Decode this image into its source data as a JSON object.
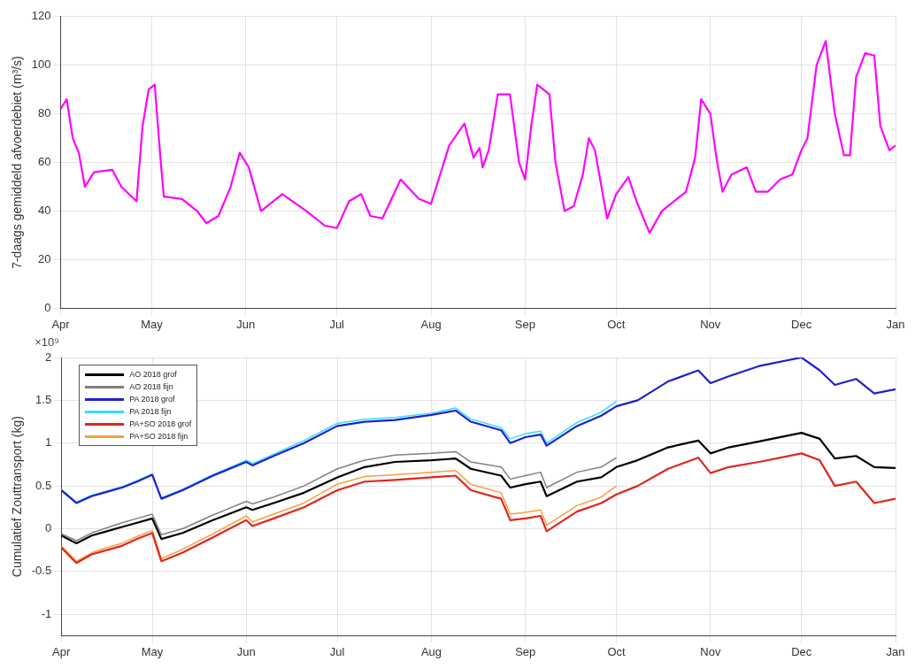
{
  "chart_data": [
    {
      "type": "line",
      "ylabel": "7-daags gemiddeld afvoerdebiet (m³/s)",
      "xlim": [
        "2018-04-01",
        "2019-01-01"
      ],
      "xticks": [
        {
          "value": "2018-04-01",
          "label": "Apr"
        },
        {
          "value": "2018-05-01",
          "label": "May"
        },
        {
          "value": "2018-06-01",
          "label": "Jun"
        },
        {
          "value": "2018-07-01",
          "label": "Jul"
        },
        {
          "value": "2018-08-01",
          "label": "Aug"
        },
        {
          "value": "2018-09-01",
          "label": "Sep"
        },
        {
          "value": "2018-10-01",
          "label": "Oct"
        },
        {
          "value": "2018-11-01",
          "label": "Nov"
        },
        {
          "value": "2018-12-01",
          "label": "Dec"
        },
        {
          "value": "2019-01-01",
          "label": "Jan"
        }
      ],
      "ylim": [
        0,
        120
      ],
      "yticks": [
        0,
        20,
        40,
        60,
        80,
        100,
        120
      ],
      "grid": true,
      "x": [
        "2018-04-01",
        "2018-04-03",
        "2018-04-05",
        "2018-04-07",
        "2018-04-09",
        "2018-04-12",
        "2018-04-18",
        "2018-04-21",
        "2018-04-26",
        "2018-04-28",
        "2018-04-30",
        "2018-05-02",
        "2018-05-04",
        "2018-05-05",
        "2018-05-11",
        "2018-05-16",
        "2018-05-19",
        "2018-05-23",
        "2018-05-27",
        "2018-05-30",
        "2018-06-02",
        "2018-06-06",
        "2018-06-13",
        "2018-06-21",
        "2018-06-27",
        "2018-07-01",
        "2018-07-05",
        "2018-07-09",
        "2018-07-12",
        "2018-07-16",
        "2018-07-22",
        "2018-07-28",
        "2018-08-01",
        "2018-08-04",
        "2018-08-07",
        "2018-08-12",
        "2018-08-15",
        "2018-08-17",
        "2018-08-18",
        "2018-08-20",
        "2018-08-23",
        "2018-08-27",
        "2018-08-30",
        "2018-09-01",
        "2018-09-03",
        "2018-09-05",
        "2018-09-09",
        "2018-09-11",
        "2018-09-14",
        "2018-09-17",
        "2018-09-20",
        "2018-09-22",
        "2018-09-24",
        "2018-09-28",
        "2018-10-01",
        "2018-10-05",
        "2018-10-08",
        "2018-10-12",
        "2018-10-16",
        "2018-10-20",
        "2018-10-24",
        "2018-10-27",
        "2018-10-29",
        "2018-11-01",
        "2018-11-03",
        "2018-11-05",
        "2018-11-08",
        "2018-11-13",
        "2018-11-16",
        "2018-11-20",
        "2018-11-24",
        "2018-11-28",
        "2018-12-01",
        "2018-12-03",
        "2018-12-06",
        "2018-12-09",
        "2018-12-12",
        "2018-12-15",
        "2018-12-17",
        "2018-12-19",
        "2018-12-22",
        "2018-12-25",
        "2018-12-27",
        "2018-12-30",
        "2019-01-01"
      ],
      "series": [
        {
          "color": "#ff00ff",
          "values": [
            82,
            86,
            70,
            64,
            50,
            56,
            57,
            50,
            44,
            75,
            90,
            92,
            60,
            46,
            45,
            40,
            35,
            38,
            50,
            64,
            58,
            40,
            47,
            40,
            34,
            33,
            44,
            47,
            38,
            37,
            53,
            45,
            43,
            55,
            67,
            76,
            62,
            66,
            58,
            65,
            88,
            88,
            60,
            53,
            75,
            92,
            88,
            60,
            40,
            42,
            55,
            70,
            65,
            37,
            47,
            54,
            43,
            31,
            40,
            44,
            48,
            62,
            86,
            80,
            62,
            48,
            55,
            58,
            48,
            48,
            53,
            55,
            65,
            70,
            100,
            110,
            80,
            63,
            63,
            95,
            105,
            104,
            75,
            65,
            67
          ]
        }
      ]
    },
    {
      "type": "line",
      "ylabel": "Cumulatief Zouttransport (kg)",
      "annotations": [
        "×10⁹"
      ],
      "legend": "top left",
      "grid": true,
      "xlim": [
        "2018-04-01",
        "2019-01-01"
      ],
      "xticks": [
        {
          "value": "2018-04-01",
          "label": "Apr"
        },
        {
          "value": "2018-05-01",
          "label": "May"
        },
        {
          "value": "2018-06-01",
          "label": "Jun"
        },
        {
          "value": "2018-07-01",
          "label": "Jul"
        },
        {
          "value": "2018-08-01",
          "label": "Aug"
        },
        {
          "value": "2018-09-01",
          "label": "Sep"
        },
        {
          "value": "2018-10-01",
          "label": "Oct"
        },
        {
          "value": "2018-11-01",
          "label": "Nov"
        },
        {
          "value": "2018-12-01",
          "label": "Dec"
        },
        {
          "value": "2019-01-01",
          "label": "Jan"
        }
      ],
      "ylim": [
        -1.25,
        2
      ],
      "yticks": [
        -1,
        -0.5,
        0,
        0.5,
        1,
        1.5,
        2
      ],
      "x": [
        "2018-04-01",
        "2018-04-06",
        "2018-04-11",
        "2018-04-16",
        "2018-04-21",
        "2018-04-26",
        "2018-05-01",
        "2018-05-04",
        "2018-05-11",
        "2018-05-21",
        "2018-06-01",
        "2018-06-03",
        "2018-06-10",
        "2018-06-20",
        "2018-07-01",
        "2018-07-10",
        "2018-07-20",
        "2018-08-01",
        "2018-08-09",
        "2018-08-14",
        "2018-08-24",
        "2018-08-27",
        "2018-09-01",
        "2018-09-06",
        "2018-09-08",
        "2018-09-18",
        "2018-09-26",
        "2018-10-01",
        "2018-10-08",
        "2018-10-18",
        "2018-10-28",
        "2018-11-01",
        "2018-11-07",
        "2018-11-17",
        "2018-12-01",
        "2018-12-07",
        "2018-12-12",
        "2018-12-19",
        "2018-12-25",
        "2019-01-01"
      ],
      "series": [
        {
          "name": "AO 2018 grof",
          "color": "#000000",
          "values": [
            -0.08,
            -0.17,
            -0.08,
            -0.03,
            0.02,
            0.07,
            0.12,
            -0.12,
            -0.05,
            0.1,
            0.25,
            0.22,
            0.3,
            0.42,
            0.6,
            0.72,
            0.78,
            0.8,
            0.82,
            0.7,
            0.62,
            0.48,
            0.52,
            0.55,
            0.38,
            0.55,
            0.6,
            0.72,
            0.8,
            0.95,
            1.03,
            0.88,
            0.95,
            1.02,
            1.12,
            1.05,
            0.82,
            0.85,
            0.72,
            0.71
          ]
        },
        {
          "name": "AO 2018 fijn",
          "color": "#808080",
          "values": [
            -0.06,
            -0.14,
            -0.05,
            0.01,
            0.07,
            0.12,
            0.17,
            -0.07,
            0,
            0.16,
            0.32,
            0.29,
            0.37,
            0.5,
            0.7,
            0.8,
            0.86,
            0.88,
            0.9,
            0.78,
            0.72,
            0.58,
            0.62,
            0.66,
            0.48,
            0.66,
            0.72,
            0.83,
            null,
            null,
            null,
            null,
            null,
            null,
            null,
            null,
            null,
            null,
            null,
            null
          ]
        },
        {
          "name": "PA 2018 grof",
          "color": "#1f1fd6",
          "values": [
            0.45,
            0.3,
            0.38,
            0.43,
            0.48,
            0.55,
            0.63,
            0.35,
            0.45,
            0.62,
            0.78,
            0.74,
            0.85,
            1,
            1.2,
            1.25,
            1.27,
            1.33,
            1.38,
            1.25,
            1.15,
            1,
            1.07,
            1.1,
            0.97,
            1.2,
            1.32,
            1.43,
            1.5,
            1.72,
            1.85,
            1.7,
            1.78,
            1.9,
            2,
            1.85,
            1.68,
            1.75,
            1.58,
            1.63
          ]
        },
        {
          "name": "PA 2018 fijn",
          "color": "#33e0f0",
          "values": [
            0.46,
            0.31,
            0.39,
            0.44,
            0.49,
            0.56,
            0.64,
            0.36,
            0.46,
            0.63,
            0.8,
            0.76,
            0.87,
            1.03,
            1.23,
            1.28,
            1.3,
            1.35,
            1.41,
            1.28,
            1.18,
            1.05,
            1.11,
            1.14,
            1,
            1.24,
            1.36,
            1.49,
            null,
            null,
            null,
            null,
            null,
            null,
            null,
            null,
            null,
            null,
            null,
            null
          ]
        },
        {
          "name": "PA+SO 2018 grof",
          "color": "#e0261e",
          "values": [
            -0.22,
            -0.4,
            -0.3,
            -0.25,
            -0.2,
            -0.12,
            -0.05,
            -0.38,
            -0.28,
            -0.1,
            0.1,
            0.03,
            0.12,
            0.25,
            0.45,
            0.55,
            0.57,
            0.6,
            0.62,
            0.45,
            0.35,
            0.1,
            0.12,
            0.15,
            -0.03,
            0.2,
            0.3,
            0.4,
            0.5,
            0.7,
            0.83,
            0.65,
            0.72,
            0.78,
            0.88,
            0.8,
            0.5,
            0.55,
            0.3,
            0.35
          ]
        },
        {
          "name": "PA+SO 2018 fijn",
          "color": "#f5a040",
          "values": [
            -0.2,
            -0.38,
            -0.28,
            -0.22,
            -0.17,
            -0.09,
            -0.02,
            -0.35,
            -0.24,
            -0.06,
            0.15,
            0.08,
            0.17,
            0.3,
            0.52,
            0.61,
            0.63,
            0.66,
            0.68,
            0.52,
            0.42,
            0.17,
            0.19,
            0.22,
            0.04,
            0.27,
            0.37,
            0.5,
            null,
            null,
            null,
            null,
            null,
            null,
            null,
            null,
            null,
            null,
            null,
            null
          ]
        }
      ]
    }
  ]
}
